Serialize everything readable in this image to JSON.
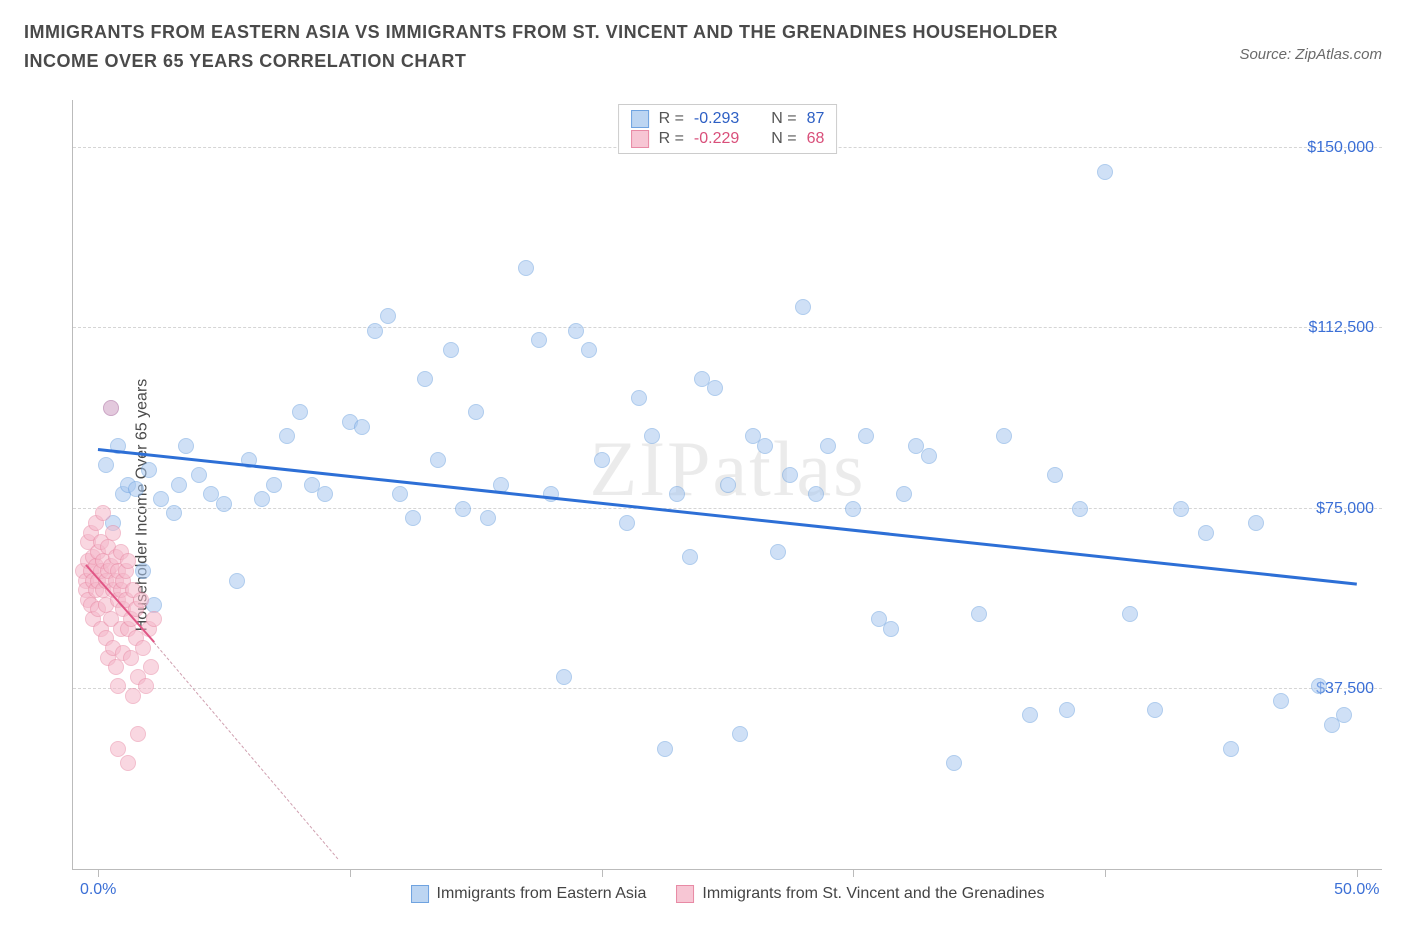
{
  "title": "IMMIGRANTS FROM EASTERN ASIA VS IMMIGRANTS FROM ST. VINCENT AND THE GRENADINES HOUSEHOLDER INCOME OVER 65 YEARS CORRELATION CHART",
  "source_label": "Source: ZipAtlas.com",
  "ylabel": "Householder Income Over 65 years",
  "watermark": "ZIPatlas",
  "chart": {
    "type": "scatter",
    "background_color": "#ffffff",
    "grid_color": "#d5d5d5",
    "axis_color": "#bbbbbb",
    "text_color": "#4a4a4a",
    "tick_label_color": "#3b6fd6",
    "xlim": [
      -1,
      51
    ],
    "ylim": [
      0,
      160000
    ],
    "yticks": [
      37500,
      75000,
      112500,
      150000
    ],
    "ytick_labels": [
      "$37,500",
      "$75,000",
      "$112,500",
      "$150,000"
    ],
    "xticks": [
      0,
      10,
      20,
      30,
      40,
      50
    ],
    "xtick_labels": [
      "0.0%",
      "",
      "",
      "",
      "",
      "50.0%"
    ],
    "marker_radius": 8,
    "marker_opacity": 0.55,
    "series": [
      {
        "name": "Immigrants from Eastern Asia",
        "color_fill": "#a8c8f0",
        "color_stroke": "#6fa3e0",
        "swatch_fill": "#bcd5f2",
        "swatch_stroke": "#6fa3e0",
        "R_label": "R =",
        "R": "-0.293",
        "N_label": "N =",
        "N": "87",
        "val_color": "#2d5fc4",
        "trend": {
          "x1": 0,
          "y1": 87000,
          "x2": 50,
          "y2": 59000,
          "color": "#2d6fd6",
          "width": 2.5
        },
        "points": [
          [
            0.3,
            84000
          ],
          [
            0.5,
            96000
          ],
          [
            0.6,
            72000
          ],
          [
            0.8,
            88000
          ],
          [
            1.0,
            78000
          ],
          [
            1.2,
            80000
          ],
          [
            1.5,
            79000
          ],
          [
            1.8,
            62000
          ],
          [
            2.0,
            83000
          ],
          [
            2.2,
            55000
          ],
          [
            2.5,
            77000
          ],
          [
            3.0,
            74000
          ],
          [
            3.2,
            80000
          ],
          [
            3.5,
            88000
          ],
          [
            4.0,
            82000
          ],
          [
            4.5,
            78000
          ],
          [
            5.0,
            76000
          ],
          [
            5.5,
            60000
          ],
          [
            6.0,
            85000
          ],
          [
            6.5,
            77000
          ],
          [
            7.0,
            80000
          ],
          [
            7.5,
            90000
          ],
          [
            8.0,
            95000
          ],
          [
            8.5,
            80000
          ],
          [
            9.0,
            78000
          ],
          [
            10.0,
            93000
          ],
          [
            10.5,
            92000
          ],
          [
            11.0,
            112000
          ],
          [
            11.5,
            115000
          ],
          [
            12.0,
            78000
          ],
          [
            12.5,
            73000
          ],
          [
            13.0,
            102000
          ],
          [
            13.5,
            85000
          ],
          [
            14.0,
            108000
          ],
          [
            14.5,
            75000
          ],
          [
            15.0,
            95000
          ],
          [
            15.5,
            73000
          ],
          [
            16.0,
            80000
          ],
          [
            17.0,
            125000
          ],
          [
            17.5,
            110000
          ],
          [
            18.0,
            78000
          ],
          [
            18.5,
            40000
          ],
          [
            19.0,
            112000
          ],
          [
            19.5,
            108000
          ],
          [
            20.0,
            85000
          ],
          [
            21.0,
            72000
          ],
          [
            21.5,
            98000
          ],
          [
            22.0,
            90000
          ],
          [
            22.5,
            25000
          ],
          [
            23.0,
            78000
          ],
          [
            23.5,
            65000
          ],
          [
            24.0,
            102000
          ],
          [
            24.5,
            100000
          ],
          [
            25.0,
            80000
          ],
          [
            25.5,
            28000
          ],
          [
            26.0,
            90000
          ],
          [
            26.5,
            88000
          ],
          [
            27.0,
            66000
          ],
          [
            27.5,
            82000
          ],
          [
            28.0,
            117000
          ],
          [
            28.5,
            78000
          ],
          [
            29.0,
            88000
          ],
          [
            30.0,
            75000
          ],
          [
            30.5,
            90000
          ],
          [
            31.0,
            52000
          ],
          [
            31.5,
            50000
          ],
          [
            32.0,
            78000
          ],
          [
            32.5,
            88000
          ],
          [
            33.0,
            86000
          ],
          [
            34.0,
            22000
          ],
          [
            35.0,
            53000
          ],
          [
            36.0,
            90000
          ],
          [
            37.0,
            32000
          ],
          [
            38.0,
            82000
          ],
          [
            38.5,
            33000
          ],
          [
            39.0,
            75000
          ],
          [
            40.0,
            145000
          ],
          [
            41.0,
            53000
          ],
          [
            42.0,
            33000
          ],
          [
            43.0,
            75000
          ],
          [
            44.0,
            70000
          ],
          [
            45.0,
            25000
          ],
          [
            46.0,
            72000
          ],
          [
            47.0,
            35000
          ],
          [
            48.5,
            38000
          ],
          [
            49.0,
            30000
          ],
          [
            49.5,
            32000
          ]
        ]
      },
      {
        "name": "Immigrants from St. Vincent and the Grenadines",
        "color_fill": "#f5b8ca",
        "color_stroke": "#e88aa5",
        "swatch_fill": "#f7c6d4",
        "swatch_stroke": "#e88aa5",
        "R_label": "R =",
        "R": "-0.229",
        "N_label": "N =",
        "N": "68",
        "val_color": "#d94f7a",
        "trend": {
          "x1": -0.5,
          "y1": 63000,
          "x2": 2.2,
          "y2": 47000,
          "color": "#e05585",
          "width": 2
        },
        "trend_ext": {
          "x1": 2.2,
          "y1": 47000,
          "x2": 9.5,
          "y2": 2000
        },
        "points": [
          [
            -0.6,
            62000
          ],
          [
            -0.5,
            60000
          ],
          [
            -0.5,
            58000
          ],
          [
            -0.4,
            64000
          ],
          [
            -0.4,
            56000
          ],
          [
            -0.4,
            68000
          ],
          [
            -0.3,
            62000
          ],
          [
            -0.3,
            70000
          ],
          [
            -0.3,
            55000
          ],
          [
            -0.2,
            60000
          ],
          [
            -0.2,
            65000
          ],
          [
            -0.2,
            52000
          ],
          [
            -0.1,
            63000
          ],
          [
            -0.1,
            58000
          ],
          [
            -0.1,
            72000
          ],
          [
            0.0,
            60000
          ],
          [
            0.0,
            66000
          ],
          [
            0.0,
            54000
          ],
          [
            0.1,
            62000
          ],
          [
            0.1,
            68000
          ],
          [
            0.1,
            50000
          ],
          [
            0.2,
            64000
          ],
          [
            0.2,
            58000
          ],
          [
            0.2,
            74000
          ],
          [
            0.3,
            60000
          ],
          [
            0.3,
            55000
          ],
          [
            0.3,
            48000
          ],
          [
            0.4,
            62000
          ],
          [
            0.4,
            67000
          ],
          [
            0.4,
            44000
          ],
          [
            0.5,
            96000
          ],
          [
            0.5,
            63000
          ],
          [
            0.5,
            52000
          ],
          [
            0.6,
            58000
          ],
          [
            0.6,
            70000
          ],
          [
            0.6,
            46000
          ],
          [
            0.7,
            60000
          ],
          [
            0.7,
            65000
          ],
          [
            0.7,
            42000
          ],
          [
            0.8,
            56000
          ],
          [
            0.8,
            62000
          ],
          [
            0.8,
            38000
          ],
          [
            0.9,
            58000
          ],
          [
            0.9,
            50000
          ],
          [
            0.9,
            66000
          ],
          [
            1.0,
            54000
          ],
          [
            1.0,
            60000
          ],
          [
            1.0,
            45000
          ],
          [
            1.1,
            56000
          ],
          [
            1.1,
            62000
          ],
          [
            1.2,
            50000
          ],
          [
            1.2,
            64000
          ],
          [
            1.3,
            52000
          ],
          [
            1.3,
            44000
          ],
          [
            1.4,
            58000
          ],
          [
            1.4,
            36000
          ],
          [
            1.5,
            54000
          ],
          [
            1.5,
            48000
          ],
          [
            1.6,
            40000
          ],
          [
            1.7,
            56000
          ],
          [
            1.8,
            46000
          ],
          [
            1.9,
            38000
          ],
          [
            2.0,
            50000
          ],
          [
            2.1,
            42000
          ],
          [
            2.2,
            52000
          ],
          [
            0.8,
            25000
          ],
          [
            1.2,
            22000
          ],
          [
            1.6,
            28000
          ]
        ]
      }
    ]
  }
}
